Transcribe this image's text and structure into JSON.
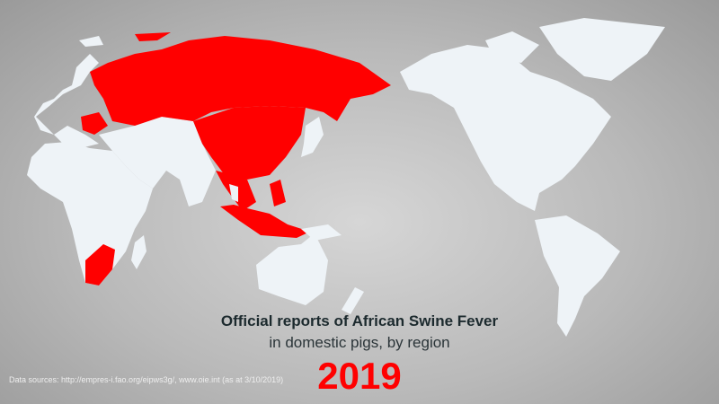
{
  "title": "Official reports of African Swine Fever",
  "subtitle": "in domestic pigs, by region",
  "year": "2019",
  "source": "Data sources: http://empres-i.fao.org/eipws3g/, www.oie.int (as at 3/10/2019)",
  "colors": {
    "affected": "#ff0000",
    "unaffected": "#eef3f7",
    "background": "#b9b9b9"
  },
  "affected_regions": [
    "Russia",
    "Eastern Europe",
    "China",
    "Mongolia",
    "North Korea",
    "South Korea",
    "Vietnam",
    "Laos",
    "Cambodia",
    "Myanmar",
    "Philippines",
    "Indonesia",
    "Timor-Leste",
    "South Africa"
  ],
  "projection": "Pacific-centered world map"
}
